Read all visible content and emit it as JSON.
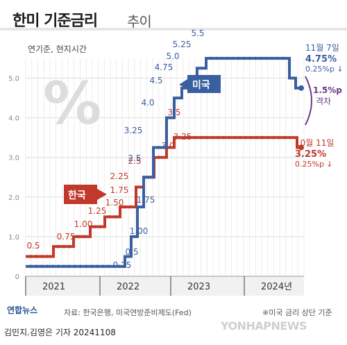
{
  "header": {
    "title_main": "한미 기준금리",
    "title_sub": "추이"
  },
  "chart_data": {
    "type": "line",
    "unit_note": "연기준, 현지시간",
    "y_ticks": [
      "0",
      "1.0",
      "2.0",
      "3.0",
      "4.0",
      "5.0"
    ],
    "ylim": [
      0,
      5.5
    ],
    "x_ticks": [
      "2021",
      "2022",
      "2023",
      "2024년"
    ],
    "grid": true,
    "series": [
      {
        "name": "미국",
        "color": "#3a5fa0",
        "values": [
          0.25,
          0.5,
          1.0,
          1.75,
          2.5,
          3.25,
          4.0,
          4.5,
          4.75,
          5.0,
          5.25,
          5.5,
          5.0,
          4.75
        ],
        "labels": [
          "0.25",
          "0.5",
          "1.00",
          "1.75",
          "2.5",
          "3.25",
          "4.0",
          "4.5",
          "4.75",
          "5.0",
          "5.25",
          "5.5",
          "",
          ""
        ]
      },
      {
        "name": "한국",
        "color": "#c1392b",
        "values": [
          0.5,
          0.75,
          1.0,
          1.25,
          1.5,
          1.75,
          2.25,
          2.5,
          3.0,
          3.25,
          3.5,
          3.25
        ],
        "labels": [
          "0.5",
          "0.75",
          "1.00",
          "1.25",
          "1.50",
          "1.75",
          "2.25",
          "2.5",
          "3.0",
          "3.25",
          "3.5",
          ""
        ]
      }
    ],
    "annotations": {
      "us_date": "11월 7일",
      "us_value": "4.75%",
      "us_change": "0.25%p ↓",
      "kr_date": "10월 11일",
      "kr_value": "3.25%",
      "kr_change": "0.25%p ↓",
      "gap_value": "1.5%p",
      "gap_label": "격차",
      "percent_symbol": "%"
    }
  },
  "colors": {
    "us": "#3a5fa0",
    "kr": "#c1392b",
    "gap": "#6b3a8c",
    "grid": "#dcdcdc"
  },
  "footer": {
    "logo": "연합뉴스",
    "source": "자료: 한국은행, 미국연방준비제도(Fed)",
    "note": "※미국 금리 상단 기준",
    "credit": "김민지.김영은 기자  20241108",
    "watermark": "YONHAPNEWS"
  }
}
